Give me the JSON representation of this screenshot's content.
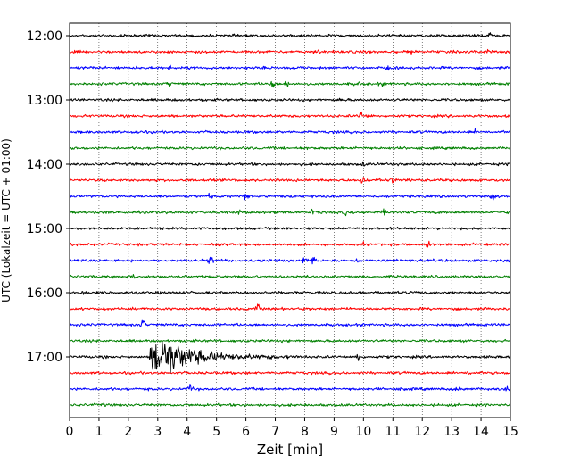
{
  "chart_data": {
    "type": "line",
    "title": "",
    "xlabel": "Zeit  [min]",
    "ylabel": "UTC (Lokalzeit = UTC + 01:00)",
    "xlim": [
      0,
      15
    ],
    "x_ticks": [
      0,
      1,
      2,
      3,
      4,
      5,
      6,
      7,
      8,
      9,
      10,
      11,
      12,
      13,
      14,
      15
    ],
    "x_tick_labels": [
      "0",
      "1",
      "2",
      "3",
      "4",
      "5",
      "6",
      "7",
      "8",
      "9",
      "10",
      "11",
      "12",
      "13",
      "14",
      "15"
    ],
    "y_tick_labels": [
      "12:00",
      "13:00",
      "14:00",
      "15:00",
      "16:00",
      "17:00"
    ],
    "y_tick_labels_at_trace_index": [
      0,
      4,
      8,
      12,
      16,
      20
    ],
    "grid": "vertical dotted at each minute",
    "trace_colors": [
      "#000000",
      "#ff0000",
      "#0000ff",
      "#008000"
    ],
    "traces": [
      {
        "start": "12:00",
        "color": "#000000",
        "events": [
          [
            14.3,
            2.0
          ]
        ]
      },
      {
        "start": "12:15",
        "color": "#ff0000",
        "events": [
          [
            8.4,
            3.5
          ],
          [
            10.2,
            1.8
          ],
          [
            11.6,
            1.6
          ],
          [
            14.2,
            1.5
          ]
        ]
      },
      {
        "start": "12:30",
        "color": "#0000ff",
        "events": [
          [
            3.4,
            1.4
          ],
          [
            10.8,
            1.4
          ]
        ]
      },
      {
        "start": "12:45",
        "color": "#008000",
        "events": [
          [
            3.4,
            2.4
          ],
          [
            6.9,
            3.5
          ],
          [
            7.4,
            4.2
          ],
          [
            9.8,
            2.5
          ],
          [
            10.6,
            2.0
          ]
        ]
      },
      {
        "start": "13:00",
        "color": "#000000",
        "events": [
          [
            9.2,
            1.4
          ]
        ]
      },
      {
        "start": "13:15",
        "color": "#ff0000",
        "events": [
          [
            9.9,
            5.0
          ],
          [
            10.2,
            2.0
          ]
        ]
      },
      {
        "start": "13:30",
        "color": "#0000ff",
        "events": [
          [
            2.3,
            1.4
          ],
          [
            13.8,
            1.4
          ]
        ]
      },
      {
        "start": "13:45",
        "color": "#008000",
        "events": []
      },
      {
        "start": "14:00",
        "color": "#000000",
        "events": [
          [
            4.4,
            1.4
          ],
          [
            10.0,
            1.4
          ]
        ]
      },
      {
        "start": "14:15",
        "color": "#ff0000",
        "events": [
          [
            10.0,
            3.8
          ],
          [
            10.6,
            3.0
          ],
          [
            11.0,
            2.2
          ],
          [
            11.6,
            1.8
          ]
        ]
      },
      {
        "start": "14:30",
        "color": "#0000ff",
        "events": [
          [
            4.8,
            2.4
          ],
          [
            6.0,
            2.4
          ],
          [
            14.4,
            2.8
          ]
        ]
      },
      {
        "start": "14:45",
        "color": "#008000",
        "events": [
          [
            5.8,
            1.8
          ],
          [
            8.3,
            2.6
          ],
          [
            9.4,
            1.6
          ],
          [
            10.7,
            1.6
          ]
        ]
      },
      {
        "start": "15:00",
        "color": "#000000",
        "events": []
      },
      {
        "start": "15:15",
        "color": "#ff0000",
        "events": [
          [
            12.2,
            4.2
          ],
          [
            10.0,
            1.6
          ]
        ]
      },
      {
        "start": "15:30",
        "color": "#0000ff",
        "events": [
          [
            4.8,
            5.0
          ],
          [
            8.0,
            3.0
          ],
          [
            8.3,
            4.5
          ],
          [
            9.8,
            2.6
          ]
        ]
      },
      {
        "start": "15:45",
        "color": "#008000",
        "events": [
          [
            2.2,
            1.6
          ]
        ]
      },
      {
        "start": "16:00",
        "color": "#000000",
        "events": [
          [
            0.5,
            1.8
          ]
        ]
      },
      {
        "start": "16:15",
        "color": "#ff0000",
        "events": [
          [
            6.4,
            4.0
          ]
        ]
      },
      {
        "start": "16:30",
        "color": "#0000ff",
        "events": [
          [
            2.5,
            5.0
          ]
        ]
      },
      {
        "start": "16:45",
        "color": "#008000",
        "events": []
      },
      {
        "start": "17:00",
        "color": "#000000",
        "events": [
          [
            9.8,
            4.5
          ]
        ],
        "earthquake": {
          "onset_min": 2.7,
          "peak_min": 3.05,
          "coda_end_min": 7.8
        }
      },
      {
        "start": "17:15",
        "color": "#ff0000",
        "events": [
          [
            13.6,
            1.6
          ]
        ]
      },
      {
        "start": "17:30",
        "color": "#0000ff",
        "events": [
          [
            4.1,
            4.0
          ],
          [
            13.2,
            2.4
          ],
          [
            11.4,
            1.6
          ],
          [
            14.9,
            2.0
          ]
        ]
      },
      {
        "start": "17:45",
        "color": "#008000",
        "events": [
          [
            1.1,
            1.8
          ]
        ]
      }
    ]
  }
}
